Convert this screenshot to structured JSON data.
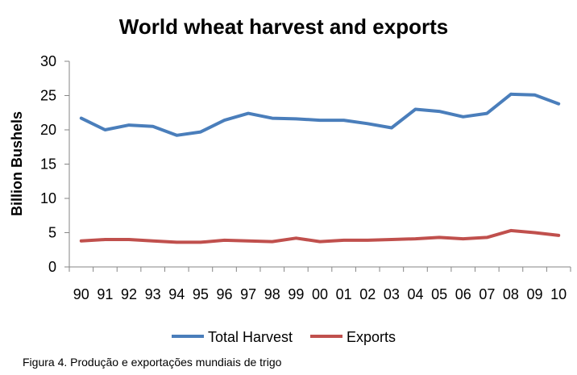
{
  "caption": "Figura 4. Produção e exportações mundiais de trigo",
  "chart_data": {
    "type": "line",
    "title": "World wheat harvest and exports",
    "xlabel": "",
    "ylabel": "Billion Bushels",
    "categories": [
      "90",
      "91",
      "92",
      "93",
      "94",
      "95",
      "96",
      "97",
      "98",
      "99",
      "00",
      "01",
      "02",
      "03",
      "04",
      "05",
      "06",
      "07",
      "08",
      "09",
      "10"
    ],
    "ylim": [
      0,
      30
    ],
    "yticks": [
      0,
      5,
      10,
      15,
      20,
      25,
      30
    ],
    "grid": false,
    "legend_position": "bottom",
    "series": [
      {
        "name": "Total Harvest",
        "color": "#4a7ebb",
        "values": [
          21.7,
          20.0,
          20.7,
          20.5,
          19.2,
          19.7,
          21.4,
          22.4,
          21.7,
          21.6,
          21.4,
          21.4,
          20.9,
          20.3,
          23.0,
          22.7,
          21.9,
          22.4,
          25.2,
          25.1,
          23.8
        ]
      },
      {
        "name": "Exports",
        "color": "#c0504d",
        "values": [
          3.8,
          4.0,
          4.0,
          3.8,
          3.6,
          3.6,
          3.9,
          3.8,
          3.7,
          4.2,
          3.7,
          3.9,
          3.9,
          4.0,
          4.1,
          4.3,
          4.1,
          4.3,
          5.3,
          5.0,
          4.6
        ]
      }
    ]
  }
}
